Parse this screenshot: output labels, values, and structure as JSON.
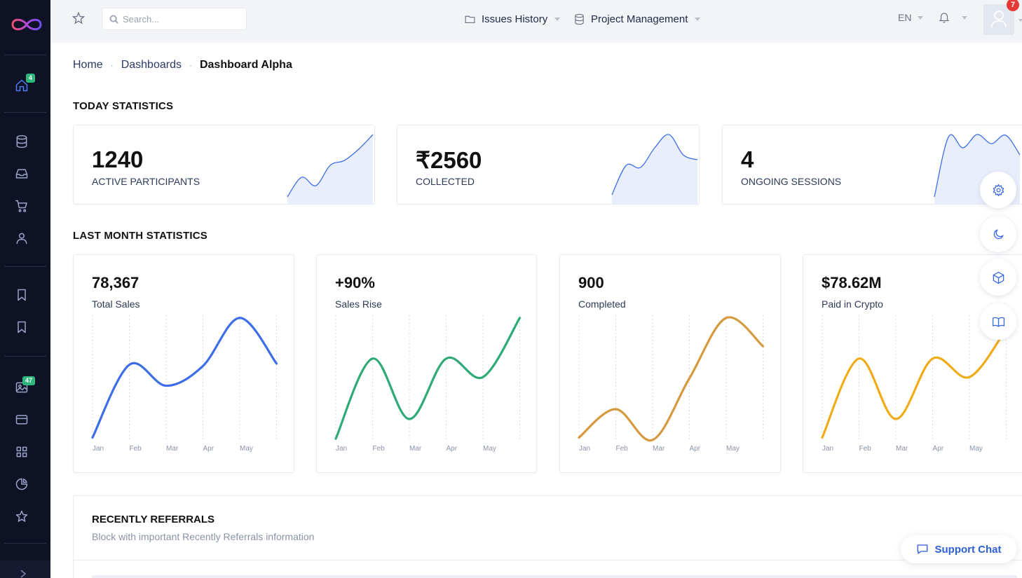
{
  "app": {
    "logo": "infinity-logo"
  },
  "sidebar": {
    "badges": {
      "home": "4",
      "gallery": "47"
    },
    "icons": [
      "home-icon",
      "database-icon",
      "inbox-icon",
      "cart-icon",
      "user-icon",
      "bookmark-icon",
      "bookmark-icon",
      "image-icon",
      "credit-card-icon",
      "grid-icon",
      "pie-chart-icon",
      "star-icon"
    ]
  },
  "topbar": {
    "search_placeholder": "Search...",
    "nav": [
      {
        "label": "Issues History",
        "icon": "folder-icon"
      },
      {
        "label": "Project Management",
        "icon": "database-icon"
      }
    ],
    "language": "EN",
    "notification_count": "7"
  },
  "breadcrumb": {
    "items": [
      "Home",
      "Dashboards"
    ],
    "separator": "·",
    "current": "Dashboard Alpha"
  },
  "today": {
    "title": "TODAY STATISTICS",
    "cards": [
      {
        "value": "1240",
        "label": "ACTIVE PARTICIPANTS",
        "trend": [
          0.1,
          0.38,
          0.26,
          0.55,
          0.62,
          0.78,
          0.99
        ]
      },
      {
        "value": "₹2560",
        "label": "COLLECTED",
        "trend": [
          0.13,
          0.55,
          0.52,
          0.8,
          0.99,
          0.7,
          0.63
        ]
      },
      {
        "value": "4",
        "label": "ONGOING SESSIONS",
        "trend": [
          0.1,
          0.96,
          0.8,
          0.99,
          0.86,
          0.98,
          0.7
        ]
      }
    ]
  },
  "last_month": {
    "title": "LAST MONTH STATISTICS",
    "months": [
      "Jan",
      "Feb",
      "Mar",
      "Apr",
      "May"
    ],
    "cards": [
      {
        "value": "78,367",
        "label": "Total Sales",
        "color": "#3d6ee8",
        "trend": [
          0.02,
          0.61,
          0.44,
          0.6,
          0.99,
          0.62
        ]
      },
      {
        "value": "+90%",
        "label": "Sales Rise",
        "color": "#2eaa77",
        "trend": [
          0.01,
          0.66,
          0.17,
          0.66,
          0.51,
          0.99
        ]
      },
      {
        "value": "900",
        "label": "Completed",
        "color": "#d69a3e",
        "trend": [
          0.02,
          0.25,
          0.0,
          0.5,
          0.99,
          0.76
        ]
      },
      {
        "value": "$78.62M",
        "label": "Paid in Crypto",
        "color": "#f0ac18",
        "trend": [
          0.02,
          0.66,
          0.17,
          0.66,
          0.51,
          0.9
        ]
      }
    ]
  },
  "floating": [
    "gear-icon",
    "moon-icon",
    "cube-icon",
    "book-icon"
  ],
  "referrals": {
    "title": "RECENTLY REFERRALS",
    "subtitle": "Block with important Recently Referrals information"
  },
  "support": {
    "label": "Support Chat"
  }
}
